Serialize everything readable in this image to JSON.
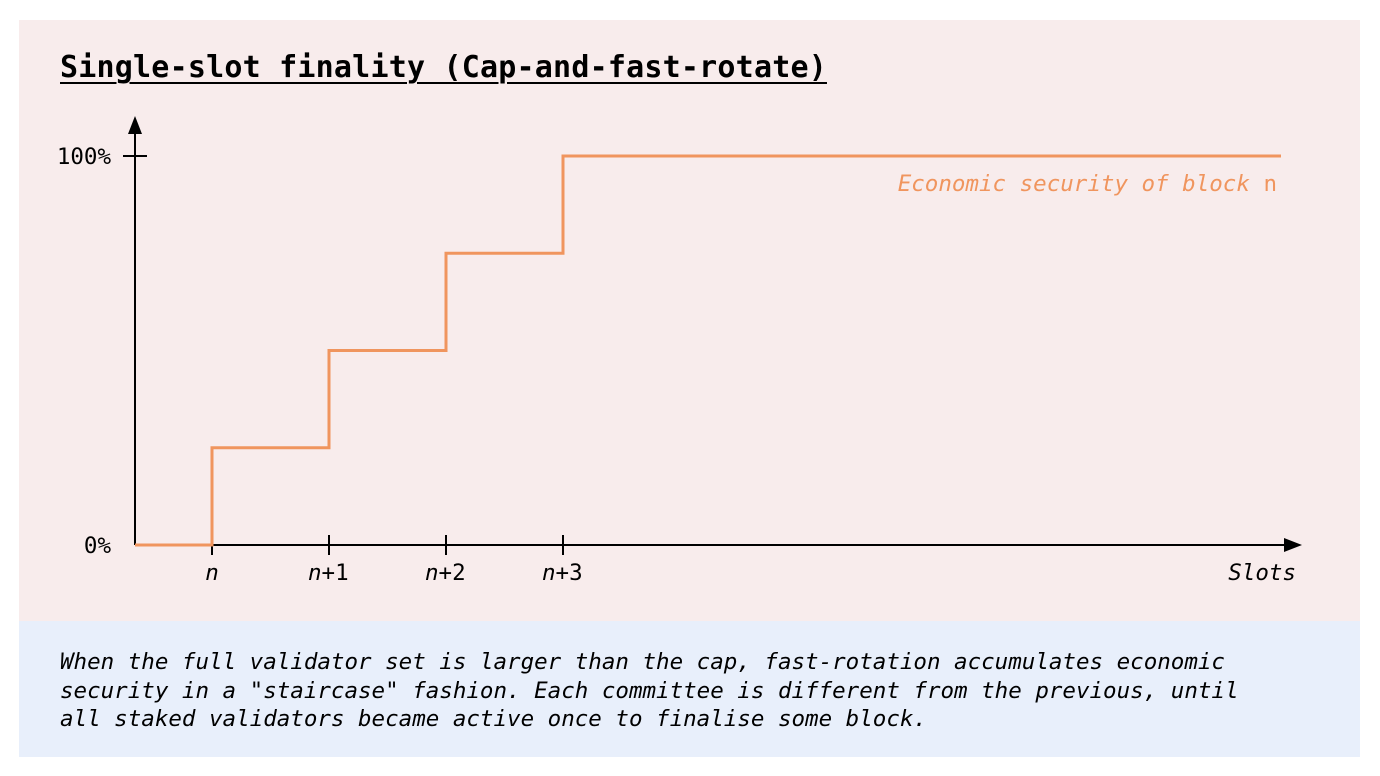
{
  "title": "Single-slot finality (Cap-and-fast-rotate)",
  "caption": "When the full validator set is larger than the cap, fast-rotation accumulates economic\nsecurity in a \"staircase\" fashion. Each committee is different from the previous, until\nall staked validators became active once to finalise some block.",
  "colors": {
    "series": "#f0955e",
    "axis": "#000000",
    "top_panel": "#f8ecec",
    "bottom_panel": "#e8effb"
  },
  "chart_data": {
    "type": "line",
    "step": true,
    "xlabel": "Slots",
    "ylabel": "",
    "x_ticks": [
      "n",
      "n+1",
      "n+2",
      "n+3"
    ],
    "y_ticks": [
      "0%",
      "100%"
    ],
    "ylim": [
      0,
      100
    ],
    "series": [
      {
        "name": "Economic security of block n",
        "name_parts": {
          "italic": "Economic security of block",
          "plain": "n"
        },
        "points": [
          {
            "x": "start",
            "y": 0
          },
          {
            "x": "n",
            "y": 0
          },
          {
            "x": "n",
            "y": 25
          },
          {
            "x": "n+1",
            "y": 25
          },
          {
            "x": "n+1",
            "y": 50
          },
          {
            "x": "n+2",
            "y": 50
          },
          {
            "x": "n+2",
            "y": 75
          },
          {
            "x": "n+3",
            "y": 75
          },
          {
            "x": "n+3",
            "y": 100
          },
          {
            "x": "end",
            "y": 100
          }
        ]
      }
    ]
  }
}
